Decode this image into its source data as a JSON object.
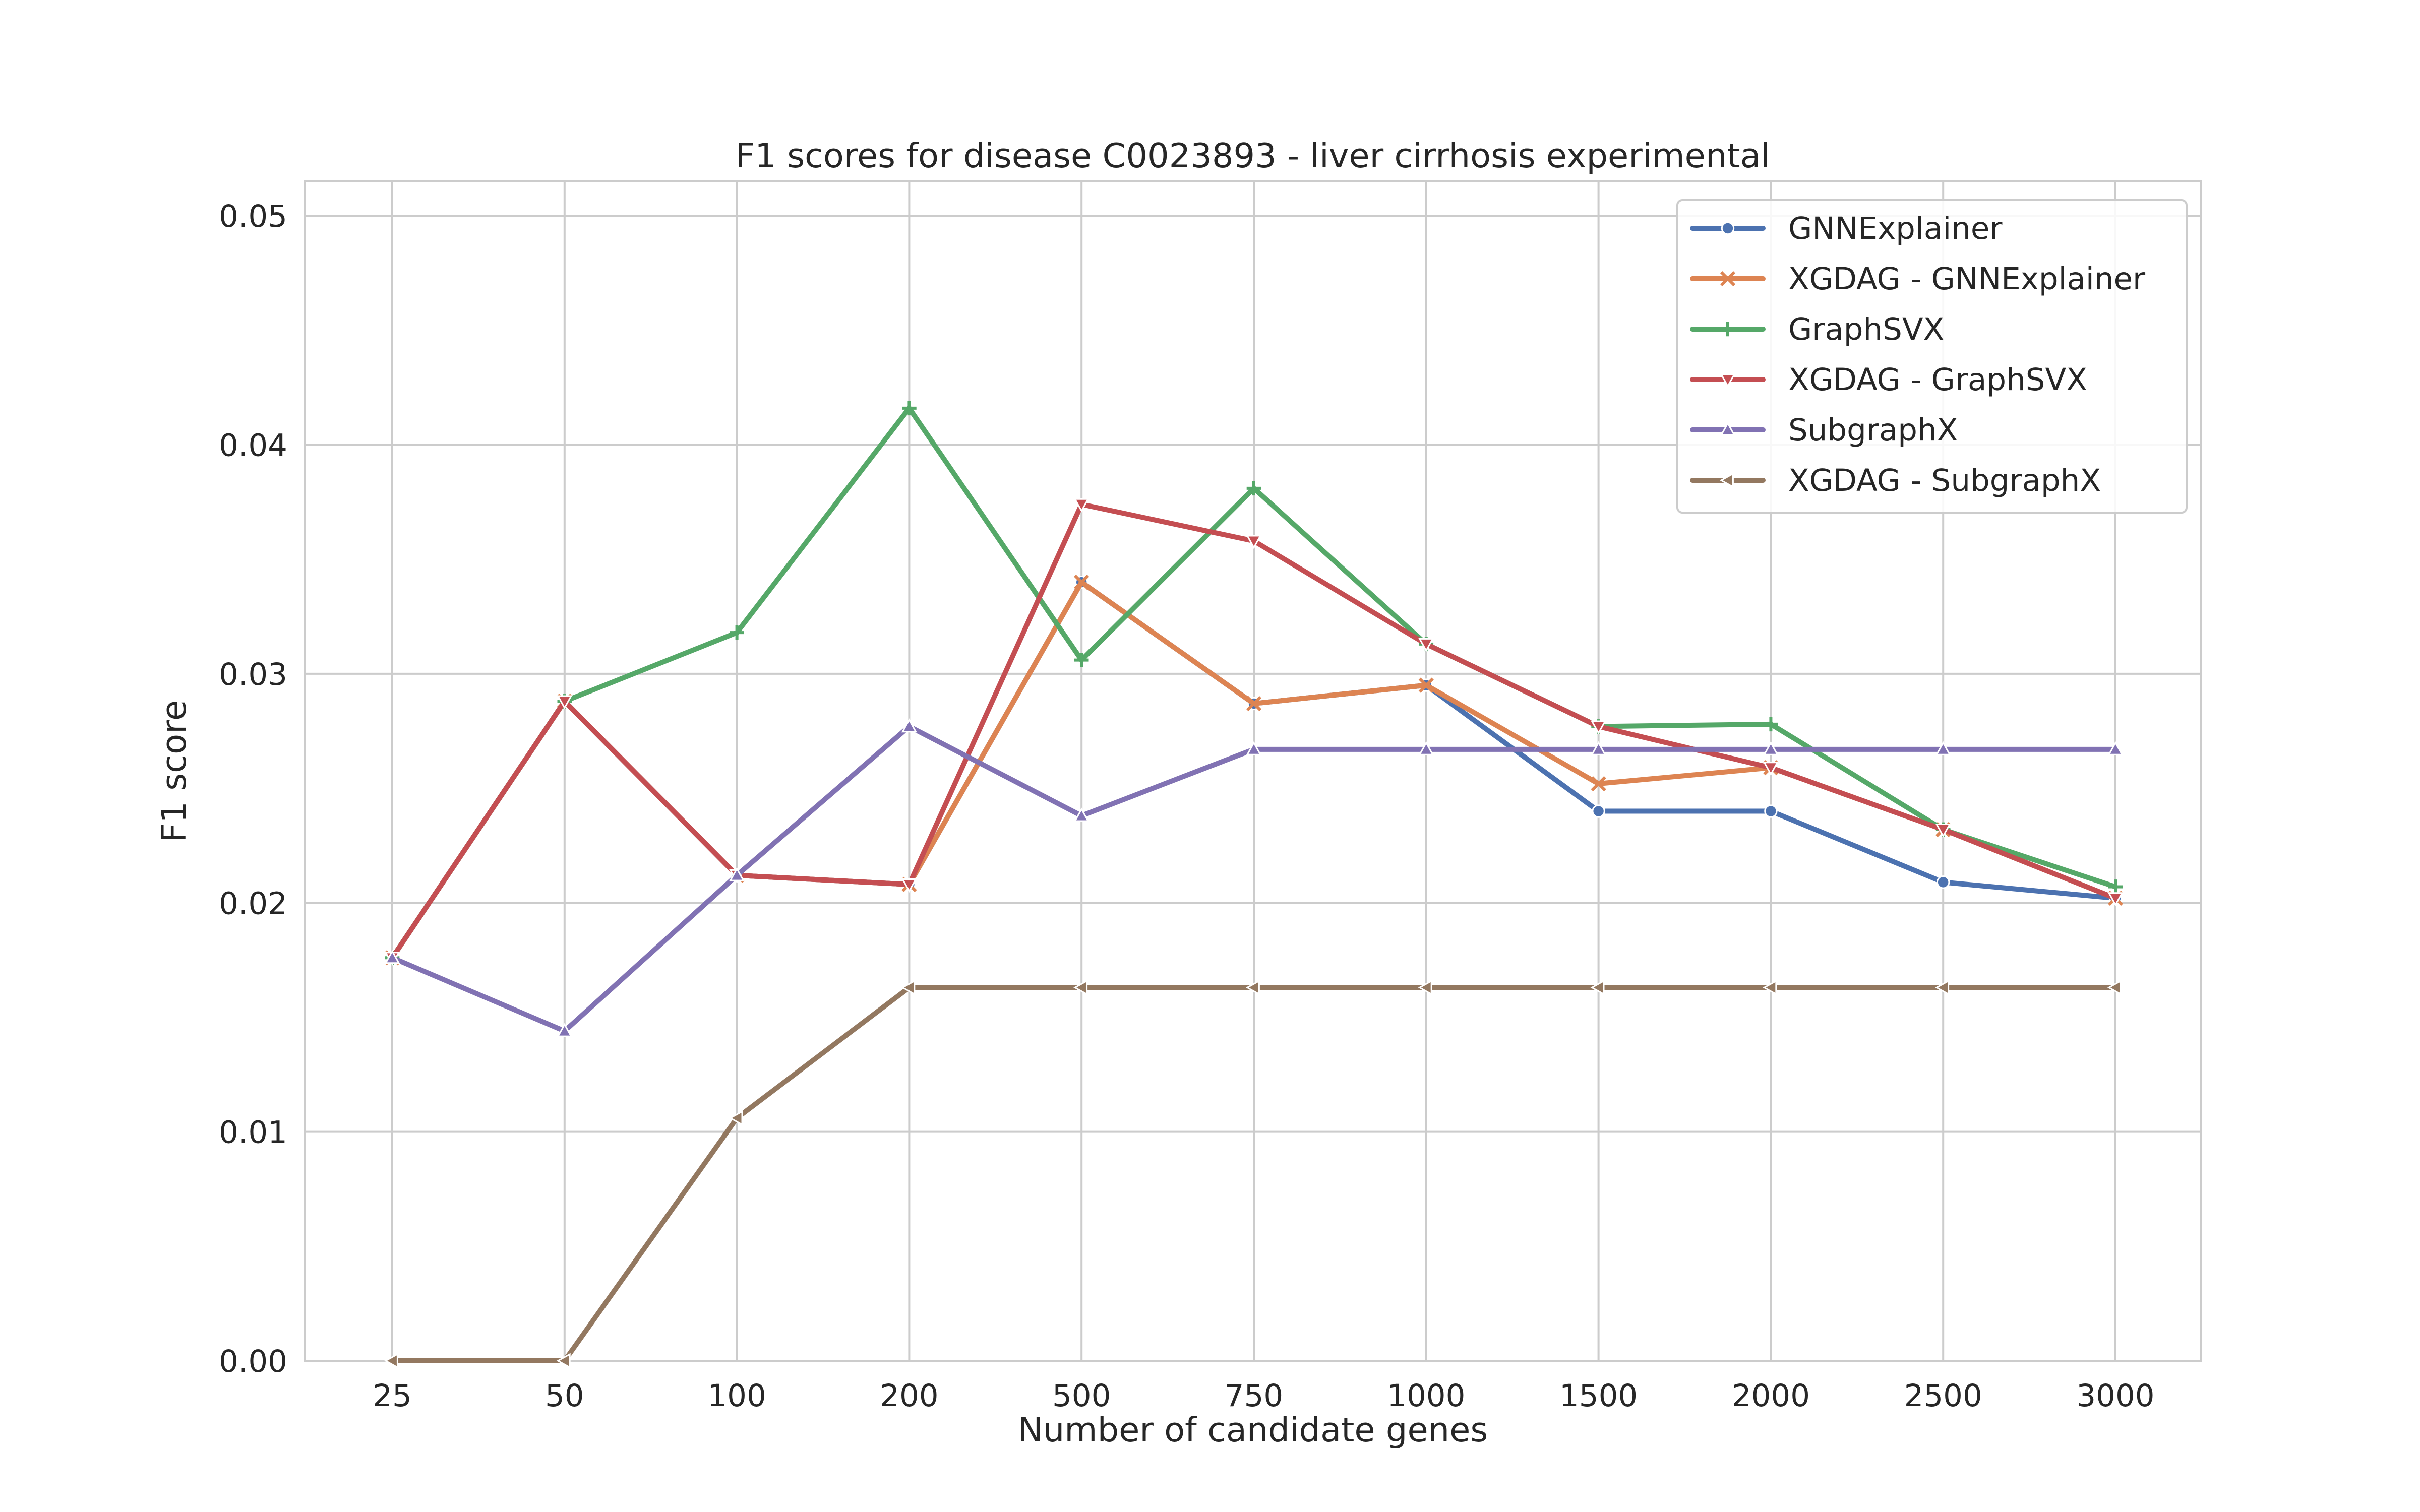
{
  "chart_data": {
    "type": "line",
    "title": "F1 scores for disease C0023893 - liver cirrhosis experimental",
    "xlabel": "Number of candidate genes",
    "ylabel": "F1 score",
    "categories": [
      "25",
      "50",
      "100",
      "200",
      "500",
      "750",
      "1000",
      "1500",
      "2000",
      "2500",
      "3000"
    ],
    "ylim": [
      0.0,
      0.0515
    ],
    "yticks": [
      0.0,
      0.01,
      0.02,
      0.03,
      0.04,
      0.05
    ],
    "ytick_labels": [
      "0.00",
      "0.01",
      "0.02",
      "0.03",
      "0.04",
      "0.05"
    ],
    "grid": true,
    "legend_position": "top-right",
    "series": [
      {
        "name": "GNNExplainer",
        "color": "#4c72b0",
        "marker": "circle",
        "values": [
          0.0176,
          0.0288,
          0.0212,
          0.0208,
          0.034,
          0.0287,
          0.0295,
          0.024,
          0.024,
          0.0209,
          0.0202
        ]
      },
      {
        "name": "XGDAG - GNNExplainer",
        "color": "#dd8452",
        "marker": "x",
        "values": [
          0.0176,
          0.0288,
          0.0212,
          0.0208,
          0.034,
          0.0287,
          0.0295,
          0.0252,
          0.0259,
          0.0232,
          0.0202
        ]
      },
      {
        "name": "GraphSVX",
        "color": "#55a868",
        "marker": "plus",
        "values": [
          0.0176,
          0.0288,
          0.0318,
          0.0416,
          0.0306,
          0.0381,
          0.0313,
          0.0277,
          0.0278,
          0.0232,
          0.0207
        ]
      },
      {
        "name": "XGDAG - GraphSVX",
        "color": "#c44e52",
        "marker": "triangle-down",
        "values": [
          0.0176,
          0.0288,
          0.0212,
          0.0208,
          0.0374,
          0.0358,
          0.0313,
          0.0277,
          0.0259,
          0.0232,
          0.0202
        ]
      },
      {
        "name": "SubgraphX",
        "color": "#8172b3",
        "marker": "triangle-up",
        "values": [
          0.0176,
          0.0144,
          0.0212,
          0.0277,
          0.0238,
          0.0267,
          0.0267,
          0.0267,
          0.0267,
          0.0267,
          0.0267
        ]
      },
      {
        "name": "XGDAG - SubgraphX",
        "color": "#937860",
        "marker": "triangle-left",
        "values": [
          0.0,
          0.0,
          0.0106,
          0.0163,
          0.0163,
          0.0163,
          0.0163,
          0.0163,
          0.0163,
          0.0163,
          0.0163
        ]
      }
    ]
  }
}
